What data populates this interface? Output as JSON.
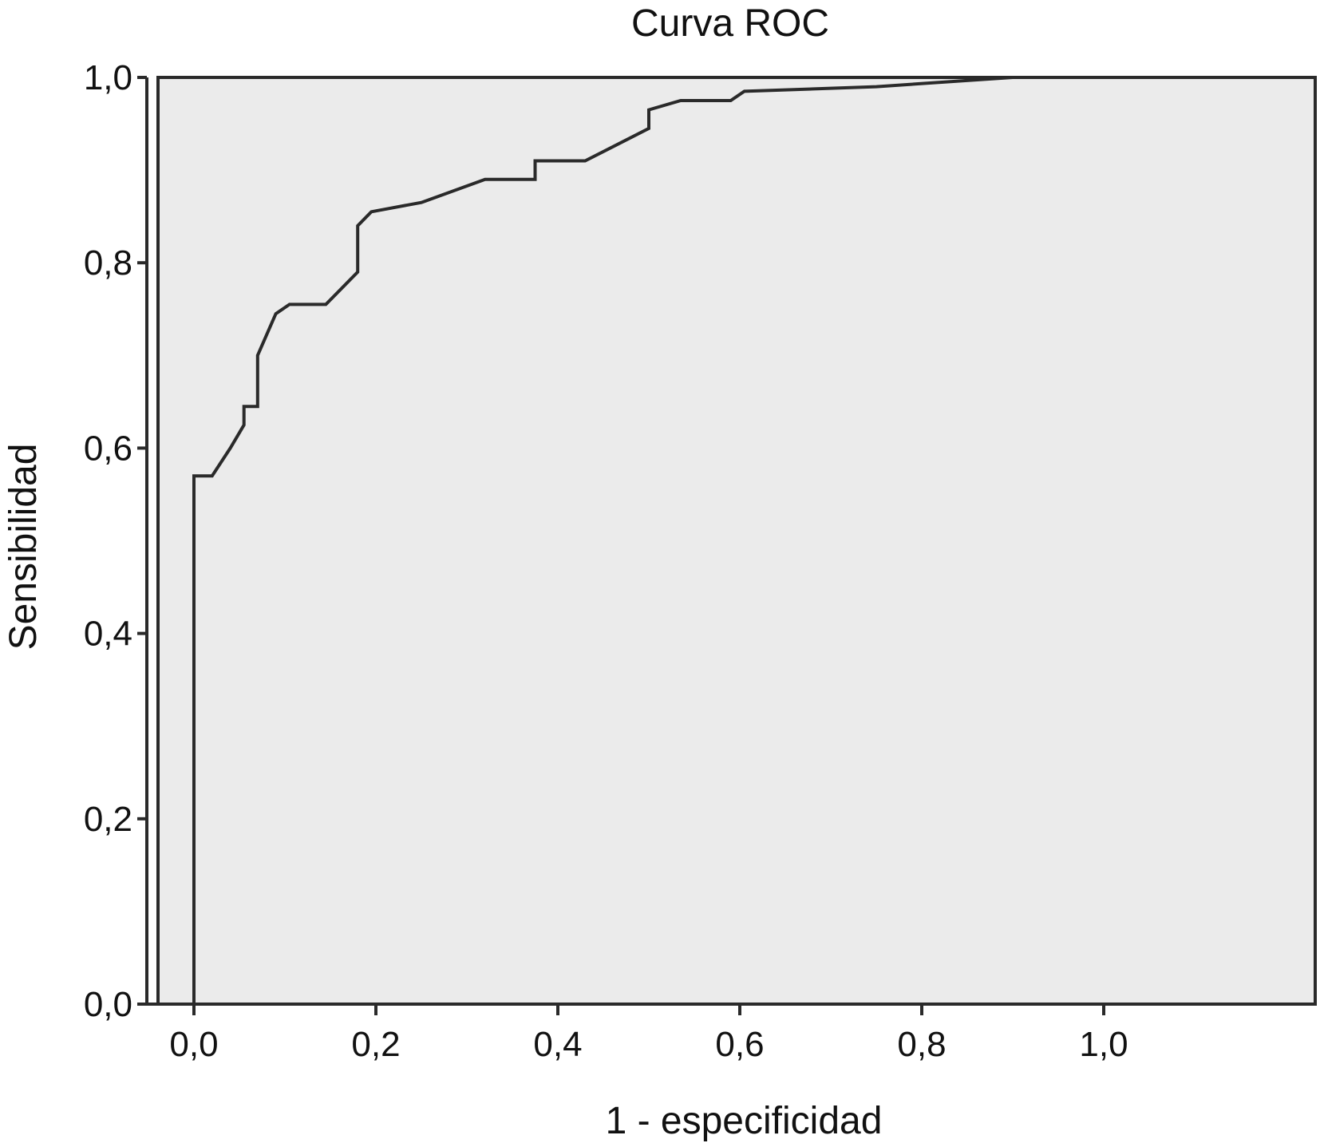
{
  "chart_data": {
    "type": "line",
    "title": "Curva ROC",
    "xlabel": "1 - especificidad",
    "ylabel": "Sensibilidad",
    "xlim": [
      -0.1,
      1.2
    ],
    "ylim": [
      0.0,
      1.0
    ],
    "x_ticks": [
      0.0,
      0.2,
      0.4,
      0.6,
      0.8,
      1.0
    ],
    "y_ticks": [
      0.0,
      0.2,
      0.4,
      0.6,
      0.8,
      1.0
    ],
    "x_tick_labels": [
      "0,0",
      "0,2",
      "0,4",
      "0,6",
      "0,8",
      "1,0"
    ],
    "y_tick_labels": [
      "0,0",
      "0,2",
      "0,4",
      "0,6",
      "0,8",
      "1,0"
    ],
    "grid": false,
    "colors": {
      "plot_background": "#ebebeb",
      "line": "#2a2a2a",
      "axis": "#2a2a2a"
    },
    "series": [
      {
        "x": [
          0.0,
          0.0,
          0.02,
          0.04,
          0.055,
          0.055,
          0.07,
          0.07,
          0.09,
          0.105,
          0.145,
          0.18,
          0.18,
          0.195,
          0.25,
          0.32,
          0.375,
          0.375,
          0.43,
          0.5,
          0.5,
          0.535,
          0.59,
          0.605,
          0.75,
          0.9,
          1.0
        ],
        "y": [
          0.0,
          0.57,
          0.57,
          0.6,
          0.625,
          0.645,
          0.645,
          0.7,
          0.745,
          0.755,
          0.755,
          0.79,
          0.84,
          0.855,
          0.865,
          0.89,
          0.89,
          0.91,
          0.91,
          0.945,
          0.965,
          0.975,
          0.975,
          0.985,
          0.99,
          1.0,
          1.0
        ]
      }
    ]
  }
}
